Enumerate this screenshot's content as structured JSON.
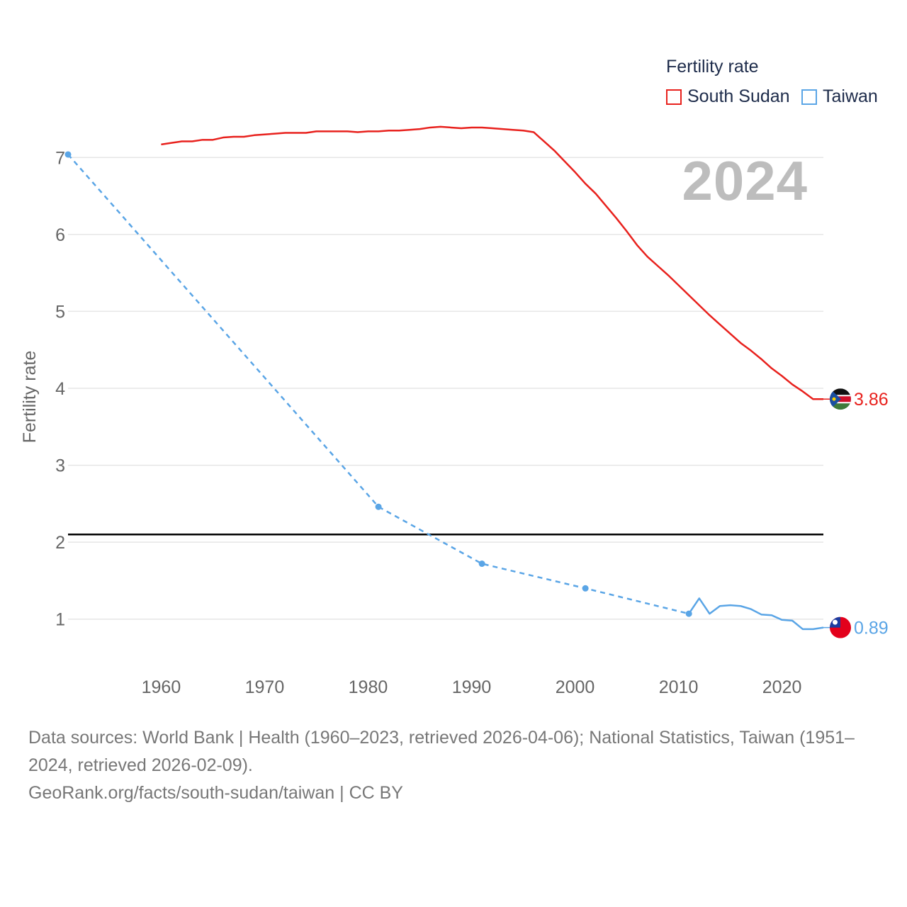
{
  "legend": {
    "title": "Fertility rate",
    "items": [
      {
        "label": "South Sudan",
        "color": "#e8211d"
      },
      {
        "label": "Taiwan",
        "color": "#5aa5e6"
      }
    ]
  },
  "current_year": "2024",
  "end_labels": {
    "south_sudan": "3.86",
    "taiwan": "0.89"
  },
  "footer": {
    "sources": "Data sources: World Bank | Health (1960–2023, retrieved 2026-04-06); National Statistics, Taiwan (1951–2024, retrieved 2026-02-09).",
    "credit": "GeoRank.org/facts/south-sudan/taiwan | CC BY"
  },
  "chart_data": {
    "type": "line",
    "title": "",
    "xlabel": "",
    "ylabel": "Fertility rate",
    "xlim": [
      1951,
      2024
    ],
    "ylim": [
      0.5,
      7.5
    ],
    "x_ticks": [
      1960,
      1970,
      1980,
      1990,
      2000,
      2010,
      2020
    ],
    "y_ticks": [
      1,
      2,
      3,
      4,
      5,
      6,
      7
    ],
    "grid": true,
    "reference_line": {
      "y": 2.1,
      "color": "#000000"
    },
    "series": [
      {
        "name": "South Sudan",
        "color": "#e8211d",
        "style": "solid",
        "points": [
          [
            1960,
            7.17
          ],
          [
            1961,
            7.19
          ],
          [
            1962,
            7.21
          ],
          [
            1963,
            7.21
          ],
          [
            1964,
            7.23
          ],
          [
            1965,
            7.23
          ],
          [
            1966,
            7.26
          ],
          [
            1967,
            7.27
          ],
          [
            1968,
            7.27
          ],
          [
            1969,
            7.29
          ],
          [
            1970,
            7.3
          ],
          [
            1971,
            7.31
          ],
          [
            1972,
            7.32
          ],
          [
            1973,
            7.32
          ],
          [
            1974,
            7.32
          ],
          [
            1975,
            7.34
          ],
          [
            1976,
            7.34
          ],
          [
            1977,
            7.34
          ],
          [
            1978,
            7.34
          ],
          [
            1979,
            7.33
          ],
          [
            1980,
            7.34
          ],
          [
            1981,
            7.34
          ],
          [
            1982,
            7.35
          ],
          [
            1983,
            7.35
          ],
          [
            1984,
            7.36
          ],
          [
            1985,
            7.37
          ],
          [
            1986,
            7.39
          ],
          [
            1987,
            7.4
          ],
          [
            1988,
            7.39
          ],
          [
            1989,
            7.38
          ],
          [
            1990,
            7.39
          ],
          [
            1991,
            7.39
          ],
          [
            1992,
            7.38
          ],
          [
            1993,
            7.37
          ],
          [
            1994,
            7.36
          ],
          [
            1995,
            7.35
          ],
          [
            1996,
            7.33
          ],
          [
            1997,
            7.21
          ],
          [
            1998,
            7.09
          ],
          [
            1999,
            6.95
          ],
          [
            2000,
            6.81
          ],
          [
            2001,
            6.66
          ],
          [
            2002,
            6.53
          ],
          [
            2003,
            6.37
          ],
          [
            2004,
            6.21
          ],
          [
            2005,
            6.04
          ],
          [
            2006,
            5.86
          ],
          [
            2007,
            5.71
          ],
          [
            2008,
            5.59
          ],
          [
            2009,
            5.47
          ],
          [
            2010,
            5.34
          ],
          [
            2011,
            5.21
          ],
          [
            2012,
            5.08
          ],
          [
            2013,
            4.95
          ],
          [
            2014,
            4.83
          ],
          [
            2015,
            4.71
          ],
          [
            2016,
            4.59
          ],
          [
            2017,
            4.49
          ],
          [
            2018,
            4.38
          ],
          [
            2019,
            4.26
          ],
          [
            2020,
            4.16
          ],
          [
            2021,
            4.05
          ],
          [
            2022,
            3.96
          ],
          [
            2023,
            3.86
          ],
          [
            2024,
            3.86
          ]
        ]
      },
      {
        "name": "Taiwan",
        "color": "#5aa5e6",
        "style": "dashed-then-solid",
        "markers": [
          [
            1951,
            7.04
          ],
          [
            1981,
            2.46
          ],
          [
            1991,
            1.72
          ],
          [
            2001,
            1.4
          ],
          [
            2011,
            1.07
          ]
        ],
        "points": [
          [
            1951,
            7.04
          ],
          [
            1981,
            2.46
          ],
          [
            1991,
            1.72
          ],
          [
            2001,
            1.4
          ],
          [
            2011,
            1.07
          ],
          [
            2012,
            1.27
          ],
          [
            2013,
            1.07
          ],
          [
            2014,
            1.17
          ],
          [
            2015,
            1.18
          ],
          [
            2016,
            1.17
          ],
          [
            2017,
            1.13
          ],
          [
            2018,
            1.06
          ],
          [
            2019,
            1.05
          ],
          [
            2020,
            0.99
          ],
          [
            2021,
            0.98
          ],
          [
            2022,
            0.87
          ],
          [
            2023,
            0.87
          ],
          [
            2024,
            0.89
          ]
        ]
      }
    ]
  }
}
